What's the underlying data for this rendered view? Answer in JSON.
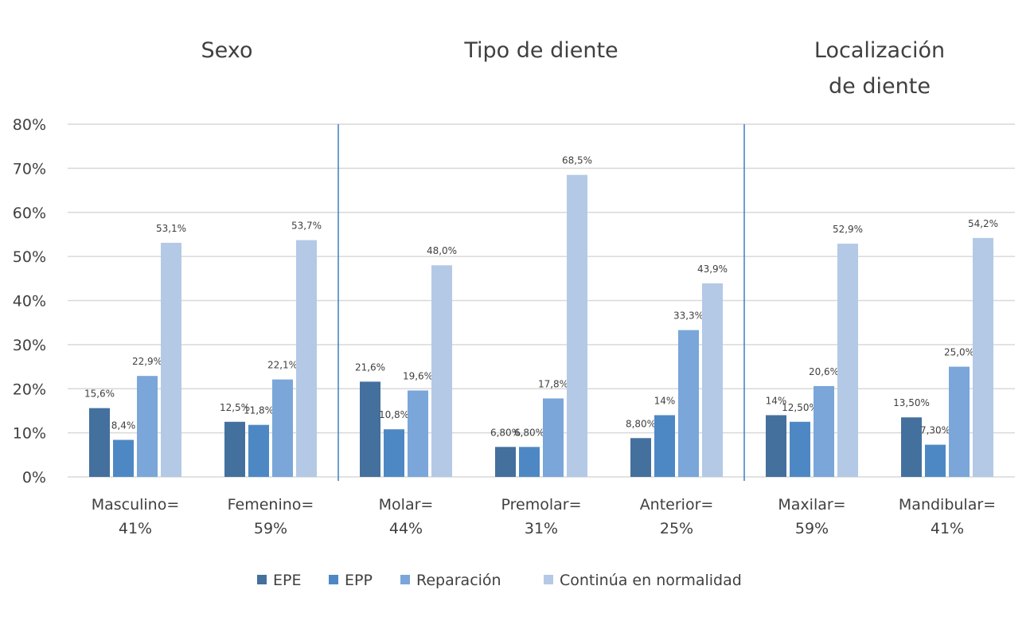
{
  "chart_data": {
    "type": "bar",
    "title": "",
    "group_titles": [
      {
        "lines": [
          "Sexo"
        ],
        "categories": [
          0,
          1
        ]
      },
      {
        "lines": [
          "Tipo de diente"
        ],
        "categories": [
          2,
          3,
          4
        ]
      },
      {
        "lines": [
          "Localización",
          "de diente"
        ],
        "categories": [
          5,
          6
        ]
      }
    ],
    "categories": [
      [
        "Masculino=",
        "41%"
      ],
      [
        "Femenino=",
        "59%"
      ],
      [
        "Molar=",
        "44%"
      ],
      [
        "Premolar=",
        "31%"
      ],
      [
        "Anterior=",
        "25%"
      ],
      [
        "Maxilar=",
        "59%"
      ],
      [
        "Mandibular=",
        "41%"
      ]
    ],
    "ylim": [
      0,
      80
    ],
    "yticks": [
      "0%",
      "10%",
      "20%",
      "30%",
      "40%",
      "50%",
      "60%",
      "70%",
      "80%"
    ],
    "grid": true,
    "legend_position": "bottom",
    "series": [
      {
        "name": "EPE",
        "color": "#44709e",
        "values": [
          15.6,
          12.5,
          21.6,
          6.8,
          8.8,
          14,
          13.5
        ],
        "labels": [
          "15,6%",
          "12,5%",
          "21,6%",
          "6,80%",
          "8,80%",
          "14%",
          "13,50%"
        ]
      },
      {
        "name": "EPP",
        "color": "#4e88c4",
        "values": [
          8.4,
          11.8,
          10.8,
          6.8,
          14,
          12.5,
          7.3
        ],
        "labels": [
          "8,4%",
          "11,8%",
          "10,8%",
          "6,80%",
          "14%",
          "12,50%",
          "7,30%"
        ]
      },
      {
        "name": "Reparación",
        "color": "#7aa6d9",
        "values": [
          22.9,
          22.1,
          19.6,
          17.8,
          33.3,
          20.6,
          25.0
        ],
        "labels": [
          "22,9%",
          "22,1%",
          "19,6%",
          "17,8%",
          "33,3%",
          "20,6%",
          "25,0%"
        ]
      },
      {
        "name": "Continúa en normalidad",
        "color": "#b3c9e6",
        "values": [
          53.1,
          53.7,
          48.0,
          68.5,
          43.9,
          52.9,
          54.2
        ],
        "labels": [
          "53,1%",
          "53,7%",
          "48,0%",
          "68,5%",
          "43,9%",
          "52,9%",
          "54,2%"
        ]
      }
    ],
    "separator_color": "#3f7fbf",
    "grid_color": "#d9d9d9"
  }
}
